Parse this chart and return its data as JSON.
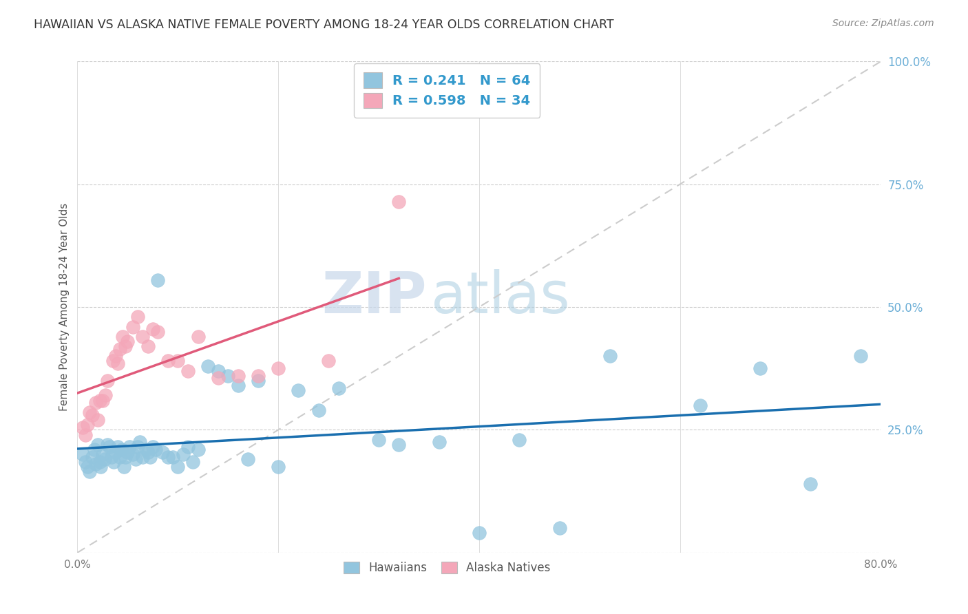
{
  "title": "HAWAIIAN VS ALASKA NATIVE FEMALE POVERTY AMONG 18-24 YEAR OLDS CORRELATION CHART",
  "source": "Source: ZipAtlas.com",
  "ylabel": "Female Poverty Among 18-24 Year Olds",
  "xlim": [
    0.0,
    0.8
  ],
  "ylim": [
    0.0,
    1.0
  ],
  "hawaiian_color": "#92c5de",
  "alaska_color": "#f4a7b9",
  "trendline_hawaiian_color": "#1a6faf",
  "trendline_alaska_color": "#e05a7a",
  "diagonal_color": "#cccccc",
  "R_hawaiian": 0.241,
  "N_hawaiian": 64,
  "R_alaska": 0.598,
  "N_alaska": 34,
  "watermark_zip": "ZIP",
  "watermark_atlas": "atlas",
  "background_color": "#ffffff",
  "hawaiian_x": [
    0.005,
    0.008,
    0.01,
    0.012,
    0.015,
    0.017,
    0.018,
    0.02,
    0.022,
    0.023,
    0.025,
    0.027,
    0.03,
    0.032,
    0.034,
    0.036,
    0.038,
    0.04,
    0.042,
    0.044,
    0.046,
    0.048,
    0.05,
    0.052,
    0.055,
    0.058,
    0.06,
    0.062,
    0.065,
    0.068,
    0.07,
    0.072,
    0.075,
    0.078,
    0.08,
    0.085,
    0.09,
    0.095,
    0.1,
    0.105,
    0.11,
    0.115,
    0.12,
    0.13,
    0.14,
    0.15,
    0.16,
    0.17,
    0.18,
    0.2,
    0.22,
    0.24,
    0.26,
    0.3,
    0.32,
    0.36,
    0.4,
    0.44,
    0.48,
    0.53,
    0.62,
    0.68,
    0.73,
    0.78
  ],
  "hawaiian_y": [
    0.2,
    0.185,
    0.175,
    0.165,
    0.195,
    0.21,
    0.18,
    0.22,
    0.185,
    0.175,
    0.2,
    0.19,
    0.22,
    0.215,
    0.195,
    0.185,
    0.205,
    0.215,
    0.195,
    0.21,
    0.175,
    0.195,
    0.205,
    0.215,
    0.2,
    0.19,
    0.215,
    0.225,
    0.195,
    0.21,
    0.205,
    0.195,
    0.215,
    0.21,
    0.555,
    0.205,
    0.195,
    0.195,
    0.175,
    0.2,
    0.215,
    0.185,
    0.21,
    0.38,
    0.37,
    0.36,
    0.34,
    0.19,
    0.35,
    0.175,
    0.33,
    0.29,
    0.335,
    0.23,
    0.22,
    0.225,
    0.04,
    0.23,
    0.05,
    0.4,
    0.3,
    0.375,
    0.14,
    0.4
  ],
  "alaska_x": [
    0.005,
    0.008,
    0.01,
    0.012,
    0.015,
    0.018,
    0.02,
    0.022,
    0.025,
    0.028,
    0.03,
    0.035,
    0.038,
    0.04,
    0.042,
    0.045,
    0.048,
    0.05,
    0.055,
    0.06,
    0.065,
    0.07,
    0.075,
    0.08,
    0.09,
    0.1,
    0.11,
    0.12,
    0.14,
    0.16,
    0.18,
    0.2,
    0.25,
    0.32
  ],
  "alaska_y": [
    0.255,
    0.24,
    0.26,
    0.285,
    0.28,
    0.305,
    0.27,
    0.31,
    0.31,
    0.32,
    0.35,
    0.39,
    0.4,
    0.385,
    0.415,
    0.44,
    0.42,
    0.43,
    0.46,
    0.48,
    0.44,
    0.42,
    0.455,
    0.45,
    0.39,
    0.39,
    0.37,
    0.44,
    0.355,
    0.36,
    0.36,
    0.375,
    0.39,
    0.715
  ]
}
